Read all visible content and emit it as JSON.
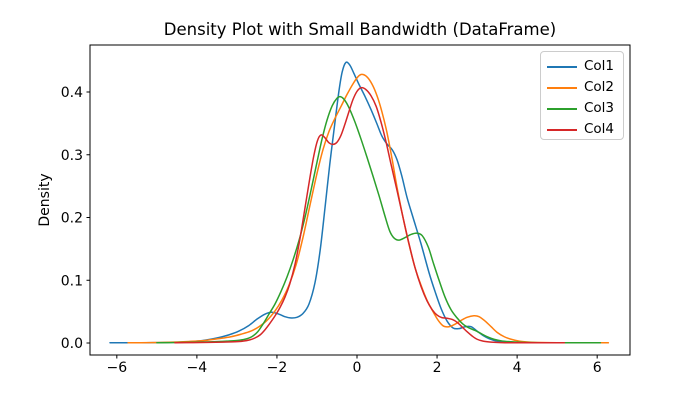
{
  "figure": {
    "background": "#ffffff",
    "spine_color": "#000000",
    "tick_color": "#000000"
  },
  "legend": {
    "position": "upper-right",
    "edge_color": "#cccccc"
  },
  "chart_data": {
    "type": "line",
    "title": "Density Plot with Small Bandwidth (DataFrame)",
    "xlabel": "",
    "ylabel": "Density",
    "xlim": [
      -6.67,
      6.82
    ],
    "ylim": [
      -0.0191,
      0.4749
    ],
    "x_ticks": [
      -6,
      -4,
      -2,
      0,
      2,
      4,
      6
    ],
    "x_tick_labels": [
      "−6",
      "−4",
      "−2",
      "0",
      "2",
      "4",
      "6"
    ],
    "y_ticks": [
      0.0,
      0.1,
      0.2,
      0.3,
      0.4
    ],
    "y_tick_labels": [
      "0.0",
      "0.1",
      "0.2",
      "0.3",
      "0.4"
    ],
    "grid": false,
    "line_width": 1.5,
    "series": [
      {
        "name": "Col1",
        "color": "#1f77b4",
        "points": [
          [
            -6.17,
            0.0004
          ],
          [
            -5.6,
            0.0004
          ],
          [
            -5.1,
            0.0006
          ],
          [
            -4.6,
            0.001
          ],
          [
            -4.2,
            0.002
          ],
          [
            -3.85,
            0.004
          ],
          [
            -3.5,
            0.008
          ],
          [
            -3.2,
            0.013
          ],
          [
            -2.95,
            0.019
          ],
          [
            -2.7,
            0.028
          ],
          [
            -2.5,
            0.038
          ],
          [
            -2.3,
            0.046
          ],
          [
            -2.13,
            0.049
          ],
          [
            -1.95,
            0.046
          ],
          [
            -1.8,
            0.042
          ],
          [
            -1.67,
            0.04
          ],
          [
            -1.5,
            0.041
          ],
          [
            -1.35,
            0.047
          ],
          [
            -1.2,
            0.062
          ],
          [
            -1.05,
            0.096
          ],
          [
            -0.92,
            0.148
          ],
          [
            -0.8,
            0.215
          ],
          [
            -0.68,
            0.285
          ],
          [
            -0.55,
            0.352
          ],
          [
            -0.45,
            0.402
          ],
          [
            -0.37,
            0.432
          ],
          [
            -0.28,
            0.447
          ],
          [
            -0.18,
            0.443
          ],
          [
            -0.08,
            0.43
          ],
          [
            0.05,
            0.412
          ],
          [
            0.2,
            0.393
          ],
          [
            0.35,
            0.372
          ],
          [
            0.5,
            0.349
          ],
          [
            0.62,
            0.33
          ],
          [
            0.75,
            0.317
          ],
          [
            0.88,
            0.308
          ],
          [
            1.0,
            0.292
          ],
          [
            1.12,
            0.266
          ],
          [
            1.25,
            0.232
          ],
          [
            1.4,
            0.2
          ],
          [
            1.6,
            0.158
          ],
          [
            1.8,
            0.112
          ],
          [
            1.95,
            0.082
          ],
          [
            2.1,
            0.055
          ],
          [
            2.25,
            0.035
          ],
          [
            2.4,
            0.024
          ],
          [
            2.55,
            0.023
          ],
          [
            2.7,
            0.026
          ],
          [
            2.85,
            0.026
          ],
          [
            3.0,
            0.019
          ],
          [
            3.15,
            0.012
          ],
          [
            3.3,
            0.007
          ],
          [
            3.5,
            0.003
          ],
          [
            3.75,
            0.001
          ],
          [
            4.1,
            0.0004
          ]
        ]
      },
      {
        "name": "Col2",
        "color": "#ff7f0e",
        "points": [
          [
            -5.72,
            0.0004
          ],
          [
            -5.2,
            0.0006
          ],
          [
            -4.7,
            0.0012
          ],
          [
            -4.2,
            0.0025
          ],
          [
            -3.8,
            0.004
          ],
          [
            -3.45,
            0.007
          ],
          [
            -3.15,
            0.01
          ],
          [
            -2.9,
            0.014
          ],
          [
            -2.65,
            0.019
          ],
          [
            -2.45,
            0.026
          ],
          [
            -2.25,
            0.036
          ],
          [
            -2.05,
            0.051
          ],
          [
            -1.88,
            0.068
          ],
          [
            -1.7,
            0.092
          ],
          [
            -1.52,
            0.125
          ],
          [
            -1.35,
            0.168
          ],
          [
            -1.18,
            0.218
          ],
          [
            -1.0,
            0.27
          ],
          [
            -0.85,
            0.308
          ],
          [
            -0.7,
            0.337
          ],
          [
            -0.55,
            0.358
          ],
          [
            -0.4,
            0.377
          ],
          [
            -0.25,
            0.396
          ],
          [
            -0.1,
            0.413
          ],
          [
            0.02,
            0.424
          ],
          [
            0.12,
            0.428
          ],
          [
            0.25,
            0.424
          ],
          [
            0.38,
            0.412
          ],
          [
            0.5,
            0.394
          ],
          [
            0.62,
            0.369
          ],
          [
            0.75,
            0.335
          ],
          [
            0.88,
            0.292
          ],
          [
            1.0,
            0.248
          ],
          [
            1.15,
            0.2
          ],
          [
            1.3,
            0.157
          ],
          [
            1.45,
            0.12
          ],
          [
            1.6,
            0.092
          ],
          [
            1.75,
            0.068
          ],
          [
            1.9,
            0.05
          ],
          [
            2.03,
            0.036
          ],
          [
            2.16,
            0.027
          ],
          [
            2.3,
            0.026
          ],
          [
            2.45,
            0.03
          ],
          [
            2.6,
            0.036
          ],
          [
            2.75,
            0.041
          ],
          [
            2.92,
            0.0435
          ],
          [
            3.05,
            0.042
          ],
          [
            3.2,
            0.035
          ],
          [
            3.35,
            0.026
          ],
          [
            3.5,
            0.017
          ],
          [
            3.68,
            0.01
          ],
          [
            3.85,
            0.006
          ],
          [
            4.05,
            0.003
          ],
          [
            4.3,
            0.0015
          ],
          [
            4.6,
            0.0008
          ],
          [
            5.0,
            0.0005
          ],
          [
            5.6,
            0.0004
          ],
          [
            6.28,
            0.0004
          ]
        ]
      },
      {
        "name": "Col3",
        "color": "#2ca02c",
        "points": [
          [
            -5.0,
            0.0004
          ],
          [
            -4.5,
            0.0008
          ],
          [
            -4.0,
            0.0015
          ],
          [
            -3.6,
            0.002
          ],
          [
            -3.25,
            0.003
          ],
          [
            -3.0,
            0.004
          ],
          [
            -2.8,
            0.006
          ],
          [
            -2.63,
            0.01
          ],
          [
            -2.48,
            0.018
          ],
          [
            -2.35,
            0.03
          ],
          [
            -2.2,
            0.046
          ],
          [
            -2.05,
            0.062
          ],
          [
            -1.9,
            0.082
          ],
          [
            -1.75,
            0.105
          ],
          [
            -1.6,
            0.132
          ],
          [
            -1.45,
            0.163
          ],
          [
            -1.3,
            0.2
          ],
          [
            -1.15,
            0.243
          ],
          [
            -1.0,
            0.288
          ],
          [
            -0.87,
            0.326
          ],
          [
            -0.75,
            0.355
          ],
          [
            -0.62,
            0.378
          ],
          [
            -0.5,
            0.39
          ],
          [
            -0.42,
            0.3926
          ],
          [
            -0.32,
            0.388
          ],
          [
            -0.2,
            0.375
          ],
          [
            -0.05,
            0.352
          ],
          [
            0.1,
            0.325
          ],
          [
            0.25,
            0.296
          ],
          [
            0.4,
            0.266
          ],
          [
            0.55,
            0.235
          ],
          [
            0.7,
            0.202
          ],
          [
            0.82,
            0.178
          ],
          [
            0.93,
            0.167
          ],
          [
            1.05,
            0.164
          ],
          [
            1.2,
            0.168
          ],
          [
            1.35,
            0.173
          ],
          [
            1.5,
            0.175
          ],
          [
            1.63,
            0.171
          ],
          [
            1.78,
            0.153
          ],
          [
            1.9,
            0.129
          ],
          [
            2.05,
            0.1
          ],
          [
            2.2,
            0.073
          ],
          [
            2.35,
            0.053
          ],
          [
            2.5,
            0.04
          ],
          [
            2.65,
            0.03
          ],
          [
            2.8,
            0.024
          ],
          [
            2.95,
            0.02
          ],
          [
            3.1,
            0.015
          ],
          [
            3.25,
            0.01
          ],
          [
            3.42,
            0.006
          ],
          [
            3.6,
            0.0035
          ],
          [
            3.85,
            0.002
          ],
          [
            4.15,
            0.001
          ],
          [
            4.6,
            0.0005
          ],
          [
            5.2,
            0.0004
          ],
          [
            6.08,
            0.0004
          ]
        ]
      },
      {
        "name": "Col4",
        "color": "#d62728",
        "points": [
          [
            -4.55,
            0.0004
          ],
          [
            -4.1,
            0.0007
          ],
          [
            -3.7,
            0.001
          ],
          [
            -3.35,
            0.0015
          ],
          [
            -3.05,
            0.002
          ],
          [
            -2.85,
            0.003
          ],
          [
            -2.68,
            0.005
          ],
          [
            -2.55,
            0.008
          ],
          [
            -2.42,
            0.013
          ],
          [
            -2.3,
            0.021
          ],
          [
            -2.18,
            0.031
          ],
          [
            -2.05,
            0.043
          ],
          [
            -1.92,
            0.057
          ],
          [
            -1.8,
            0.073
          ],
          [
            -1.68,
            0.094
          ],
          [
            -1.55,
            0.125
          ],
          [
            -1.42,
            0.168
          ],
          [
            -1.3,
            0.215
          ],
          [
            -1.18,
            0.262
          ],
          [
            -1.08,
            0.298
          ],
          [
            -0.99,
            0.322
          ],
          [
            -0.9,
            0.3315
          ],
          [
            -0.8,
            0.327
          ],
          [
            -0.7,
            0.319
          ],
          [
            -0.6,
            0.3165
          ],
          [
            -0.5,
            0.32
          ],
          [
            -0.4,
            0.331
          ],
          [
            -0.3,
            0.349
          ],
          [
            -0.2,
            0.369
          ],
          [
            -0.1,
            0.388
          ],
          [
            0.0,
            0.401
          ],
          [
            0.1,
            0.4068
          ],
          [
            0.22,
            0.404
          ],
          [
            0.35,
            0.394
          ],
          [
            0.48,
            0.377
          ],
          [
            0.6,
            0.352
          ],
          [
            0.72,
            0.322
          ],
          [
            0.85,
            0.285
          ],
          [
            1.0,
            0.243
          ],
          [
            1.15,
            0.2
          ],
          [
            1.3,
            0.158
          ],
          [
            1.45,
            0.12
          ],
          [
            1.6,
            0.09
          ],
          [
            1.75,
            0.067
          ],
          [
            1.88,
            0.053
          ],
          [
            2.0,
            0.0445
          ],
          [
            2.12,
            0.0405
          ],
          [
            2.25,
            0.0395
          ],
          [
            2.38,
            0.0375
          ],
          [
            2.5,
            0.033
          ],
          [
            2.62,
            0.026
          ],
          [
            2.75,
            0.018
          ],
          [
            2.88,
            0.011
          ],
          [
            3.0,
            0.006
          ],
          [
            3.15,
            0.003
          ],
          [
            3.35,
            0.0015
          ],
          [
            3.6,
            0.0007
          ],
          [
            4.0,
            0.0004
          ],
          [
            5.18,
            0.0004
          ]
        ]
      }
    ]
  }
}
